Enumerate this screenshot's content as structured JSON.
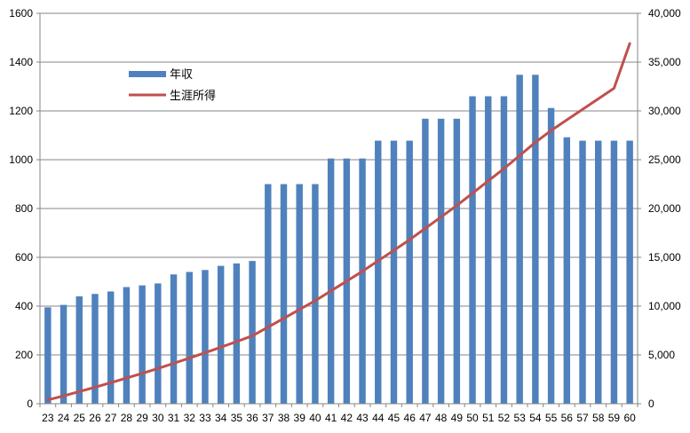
{
  "chart_data": {
    "type": "bar+line",
    "title": "",
    "xlabel": "",
    "ylabel": "",
    "y2label": "",
    "categories": [
      "23",
      "24",
      "25",
      "26",
      "27",
      "28",
      "29",
      "30",
      "31",
      "32",
      "33",
      "34",
      "35",
      "36",
      "37",
      "38",
      "39",
      "40",
      "41",
      "42",
      "43",
      "44",
      "45",
      "46",
      "47",
      "48",
      "49",
      "50",
      "51",
      "52",
      "53",
      "54",
      "55",
      "56",
      "57",
      "58",
      "59",
      "60"
    ],
    "series": [
      {
        "name": "年収",
        "type": "bar",
        "axis": "left",
        "color": "#4f81bd",
        "values": [
          395,
          405,
          440,
          450,
          460,
          478,
          485,
          493,
          530,
          540,
          548,
          565,
          575,
          585,
          900,
          900,
          900,
          900,
          1005,
          1005,
          1005,
          1078,
          1078,
          1078,
          1168,
          1168,
          1168,
          1260,
          1260,
          1260,
          1348,
          1348,
          1212,
          1092,
          1078,
          1078,
          1078,
          1078
        ]
      },
      {
        "name": "生涯所得",
        "type": "line",
        "axis": "right",
        "color": "#c0504d",
        "values": [
          395,
          800,
          1240,
          1690,
          2150,
          2628,
          3113,
          3606,
          4136,
          4676,
          5224,
          5789,
          6364,
          6949,
          7849,
          8749,
          9649,
          10549,
          11554,
          12559,
          13564,
          14642,
          15720,
          16798,
          17966,
          19134,
          20302,
          21562,
          22822,
          24082,
          25430,
          26778,
          27990,
          29082,
          30160,
          31238,
          32316,
          36900
        ]
      }
    ],
    "ylim": [
      0,
      1600
    ],
    "yticks": [
      0,
      200,
      400,
      600,
      800,
      1000,
      1200,
      1400,
      1600
    ],
    "y2lim": [
      0,
      40000
    ],
    "y2ticks": [
      "0",
      "5,000",
      "10,000",
      "15,000",
      "20,000",
      "25,000",
      "30,000",
      "35,000",
      "40,000"
    ],
    "grid": true,
    "legend_position": "upper-left"
  }
}
